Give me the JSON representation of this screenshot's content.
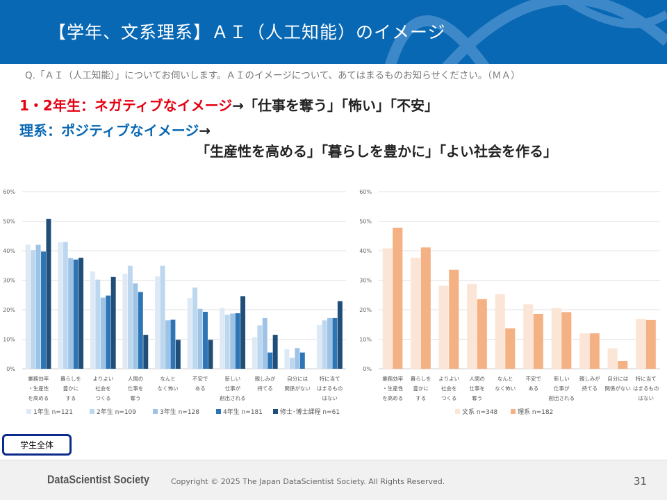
{
  "header": {
    "title": "【学年、文系理系】ＡＩ（人工知能）のイメージ"
  },
  "question": "Q.「ＡＩ（人工知能）」についてお伺いします。ＡＩのイメージについて、あてはまるものお知らせください。（ＭＡ）",
  "highlights": {
    "line1_red": "1・2年生：ネガティブなイメージ",
    "line1_rest": "→「仕事を奪う」「怖い」「不安」",
    "line2_blue": "理系：ポジティブなイメージ",
    "line2_rest": "→",
    "line3": "「生産性を高める」「暮らしを豊かに」「よい社会を作る」"
  },
  "button_label": "学生全体",
  "footer": {
    "logo": "DataScientist Society",
    "copyright": "Copyright © 2025  The Japan DataScientist Society. All Rights Reserved.",
    "page": "31"
  },
  "chart_data": [
    {
      "type": "bar",
      "ylim": [
        0,
        60
      ],
      "yticks": [
        "0%",
        "10%",
        "20%",
        "30%",
        "40%",
        "50%",
        "60%"
      ],
      "grid": true,
      "legend": "bottom",
      "categories": [
        [
          "業務効率",
          "・生産性",
          "を高める"
        ],
        [
          "暮らしを",
          "豊かに",
          "する"
        ],
        [
          "よりよい",
          "社会を",
          "つくる"
        ],
        [
          "人間の",
          "仕事を",
          "奪う"
        ],
        [
          "なんと",
          "なく怖い"
        ],
        [
          "不安で",
          "ある"
        ],
        [
          "新しい",
          "仕事が",
          "創出される"
        ],
        [
          "親しみが",
          "持てる"
        ],
        [
          "自分には",
          "関係がない"
        ],
        [
          "特に当て",
          "はまるもの",
          "はない"
        ]
      ],
      "series": [
        {
          "name": "1年生 n=121",
          "color": "#ddeaf6",
          "values": [
            42.0,
            42.9,
            33.0,
            32.2,
            31.3,
            24.0,
            20.6,
            10.7,
            6.6,
            14.8
          ]
        },
        {
          "name": "2年生 n=109",
          "color": "#bdd7ee",
          "values": [
            40.2,
            43.0,
            30.2,
            34.9,
            34.9,
            27.5,
            18.3,
            14.7,
            3.7,
            16.4
          ]
        },
        {
          "name": "3年生 n=128",
          "color": "#9dc3e6",
          "values": [
            42.0,
            37.5,
            24.1,
            28.9,
            16.4,
            20.3,
            18.7,
            17.2,
            7.0,
            17.2
          ]
        },
        {
          "name": "4年生 n=181",
          "color": "#2e75b6",
          "values": [
            39.7,
            37.0,
            24.8,
            26.0,
            16.6,
            19.3,
            18.8,
            5.5,
            5.5,
            17.2
          ]
        },
        {
          "name": "修士･博士課程 n=61",
          "color": "#1f4e79",
          "values": [
            50.8,
            37.6,
            31.1,
            11.5,
            9.8,
            9.8,
            24.6,
            11.5,
            0,
            22.9
          ]
        }
      ]
    },
    {
      "type": "bar",
      "ylim": [
        0,
        60
      ],
      "yticks": [
        "0%",
        "10%",
        "20%",
        "30%",
        "40%",
        "50%",
        "60%"
      ],
      "grid": true,
      "legend": "bottom",
      "categories": [
        [
          "業務効率",
          "・生産性",
          "を高める"
        ],
        [
          "暮らしを",
          "豊かに",
          "する"
        ],
        [
          "よりよい",
          "社会を",
          "つくる"
        ],
        [
          "人間の",
          "仕事を",
          "奪う"
        ],
        [
          "なんと",
          "なく怖い"
        ],
        [
          "不安で",
          "ある"
        ],
        [
          "新しい",
          "仕事が",
          "創出される"
        ],
        [
          "親しみが",
          "持てる"
        ],
        [
          "自分には",
          "関係がない"
        ],
        [
          "特に当て",
          "はまるもの",
          "はない"
        ]
      ],
      "series": [
        {
          "name": "文系 n=348",
          "color": "#fbe5d6",
          "values": [
            40.8,
            37.6,
            28.1,
            28.7,
            25.3,
            21.8,
            20.6,
            12.0,
            6.9,
            16.9
          ]
        },
        {
          "name": "理系 n=182",
          "color": "#f4b183",
          "values": [
            47.8,
            41.1,
            33.5,
            23.6,
            13.7,
            18.6,
            19.2,
            12.0,
            2.6,
            16.5
          ]
        }
      ]
    }
  ]
}
